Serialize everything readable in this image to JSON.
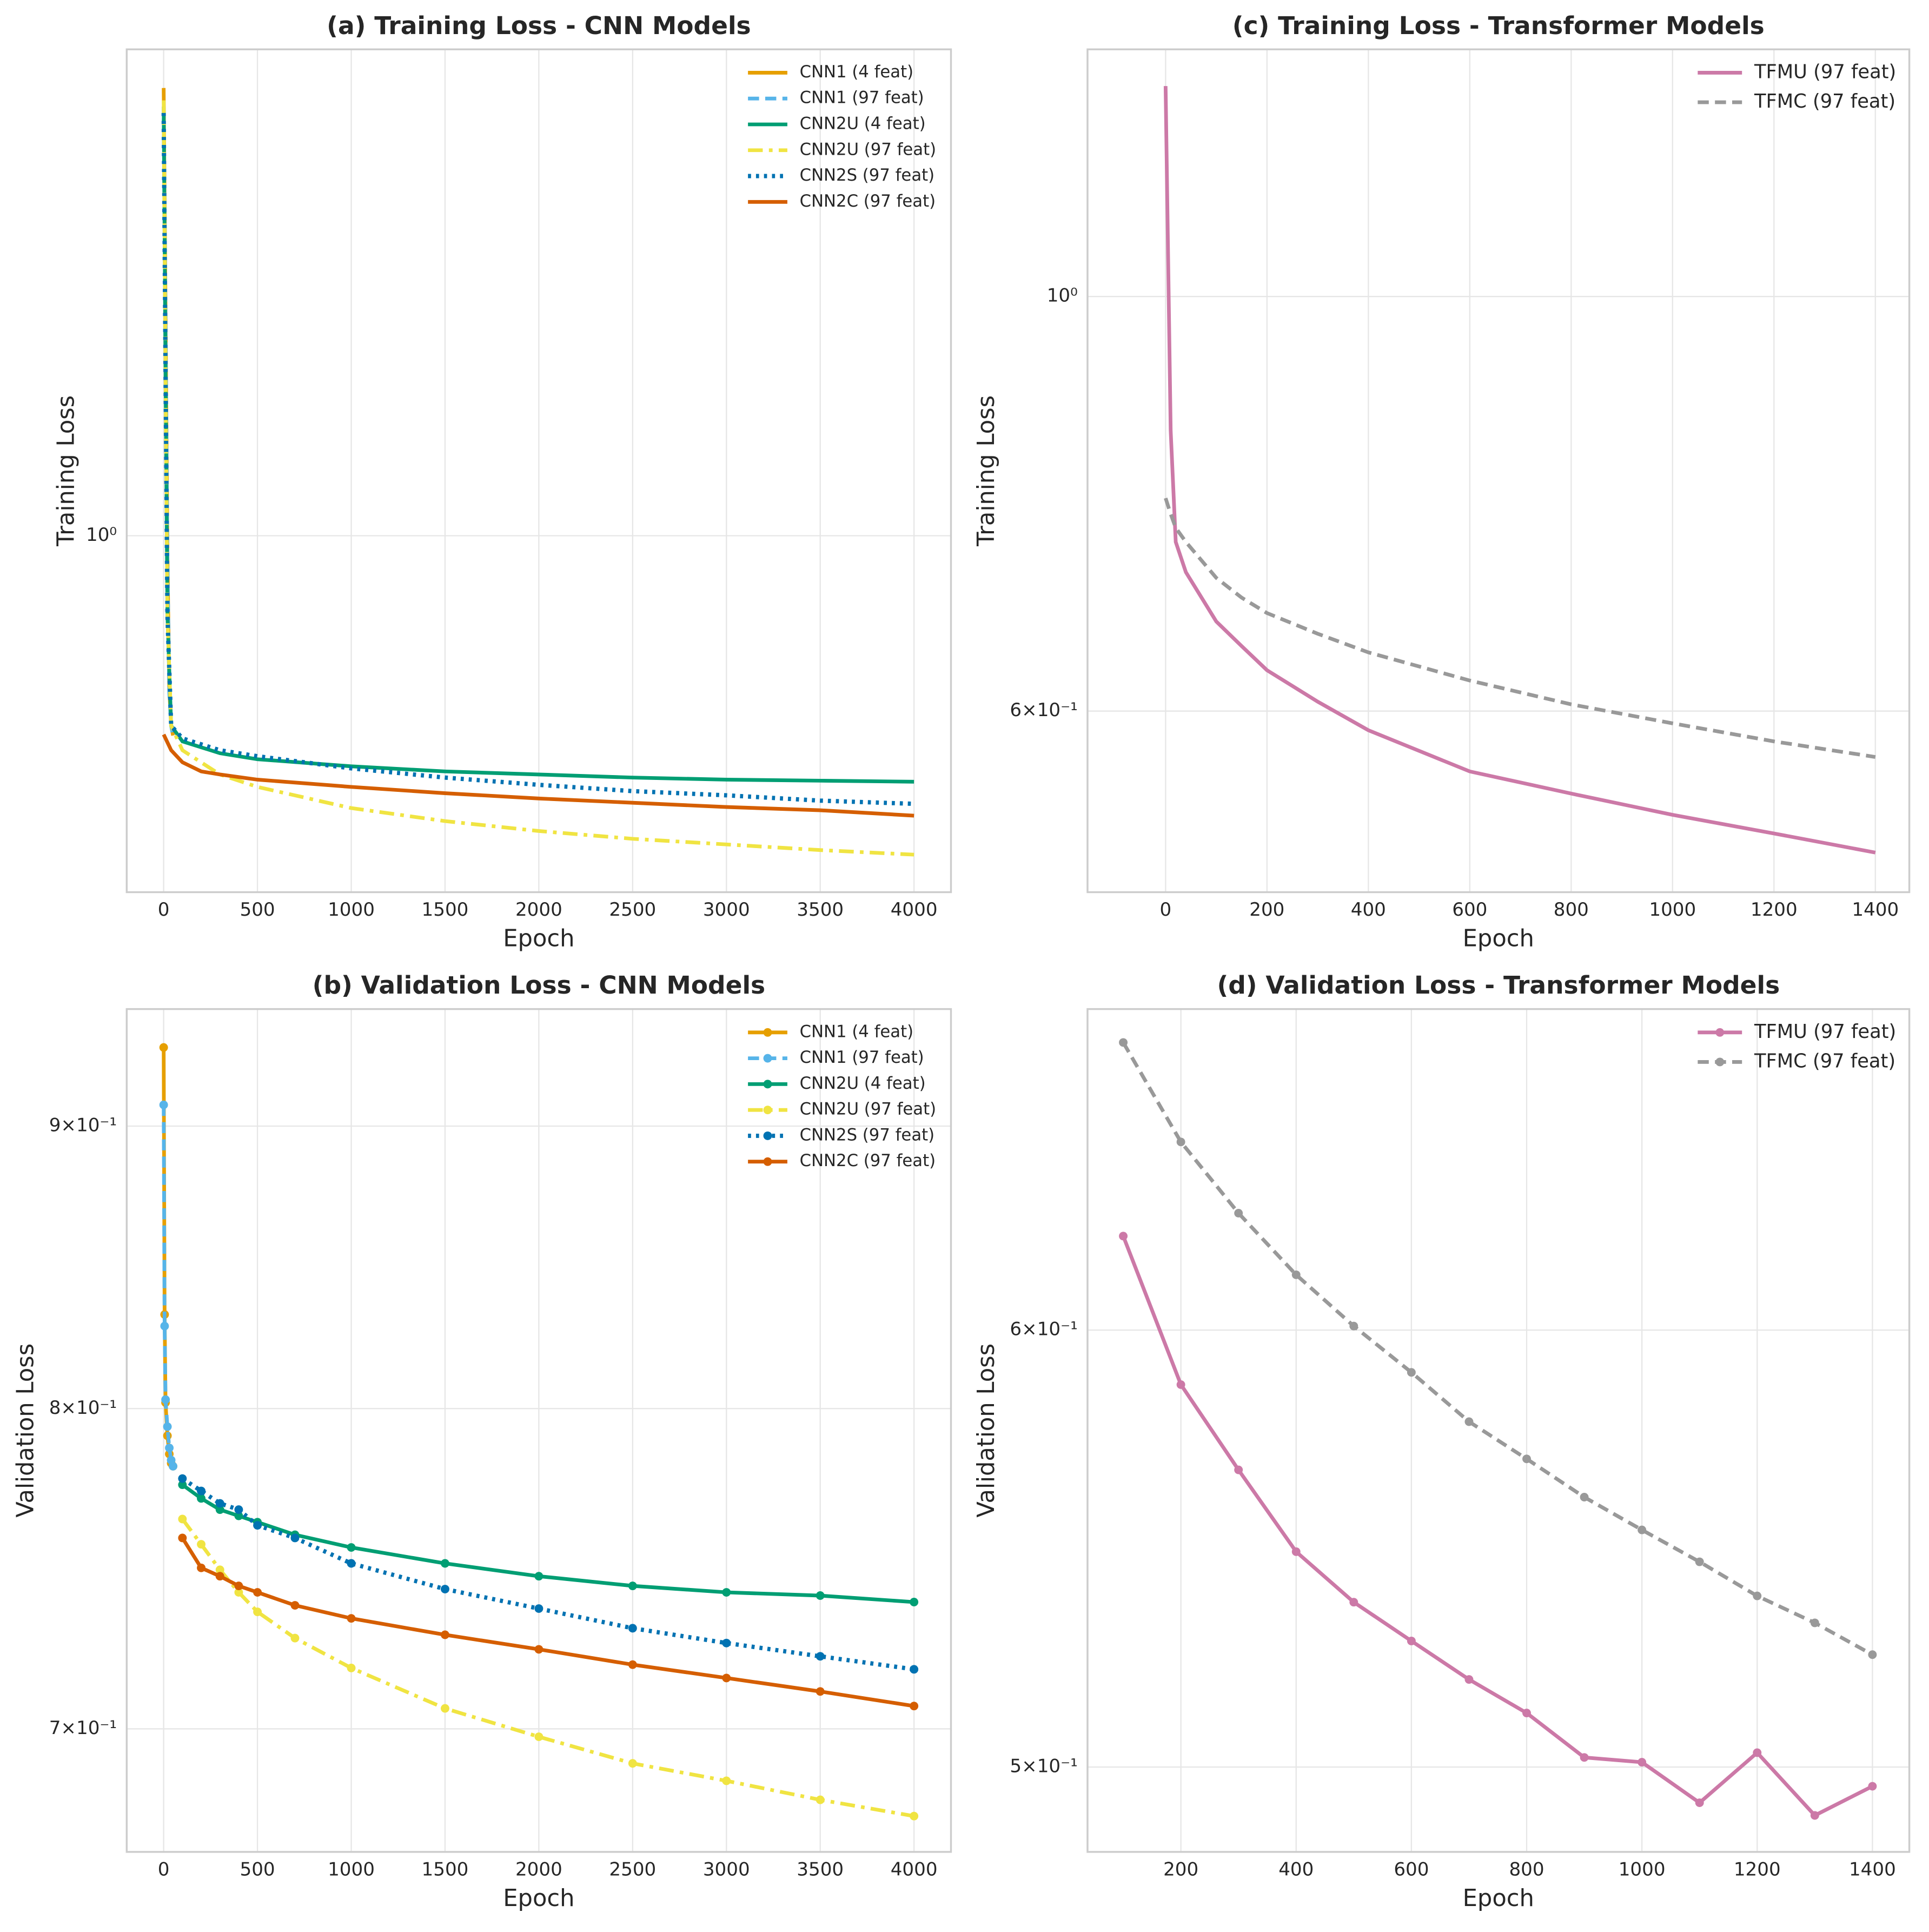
{
  "chart_data": [
    {
      "type": "line",
      "title": "(a) Training Loss - CNN Models",
      "xlabel": "Epoch",
      "ylabel": "Training Loss",
      "log_y": true,
      "grid": true,
      "legend": "upper right",
      "markers": false,
      "xlim": [
        -197,
        4197
      ],
      "xticks": [
        0,
        500,
        1000,
        1500,
        2000,
        2500,
        3000,
        3500,
        4000
      ],
      "ylim": [
        0.62,
        1.92
      ],
      "yticks": [
        {
          "value": 1,
          "label": "10⁰"
        }
      ],
      "series": [
        {
          "name": "CNN1 (4 feat)",
          "color": "#E69F00",
          "linestyle": "solid",
          "x": [
            0,
            10,
            20,
            30,
            40,
            50
          ],
          "values": [
            1.823,
            1.356,
            0.976,
            0.814,
            0.775,
            0.765
          ]
        },
        {
          "name": "CNN1 (97 feat)",
          "color": "#56B4E9",
          "linestyle": "dashed",
          "x": [
            0,
            10,
            20,
            30,
            40,
            50
          ],
          "values": [
            1.75,
            1.33,
            0.97,
            0.81,
            0.775,
            0.765
          ]
        },
        {
          "name": "CNN2U (4 feat)",
          "color": "#009E73",
          "linestyle": "solid",
          "x": [
            0,
            10,
            20,
            40,
            100,
            300,
            500,
            1000,
            1500,
            2000,
            2500,
            3000,
            3500,
            4000
          ],
          "values": [
            1.778,
            1.249,
            0.899,
            0.775,
            0.759,
            0.747,
            0.741,
            0.734,
            0.729,
            0.726,
            0.723,
            0.721,
            0.72,
            0.719
          ]
        },
        {
          "name": "CNN2U (97 feat)",
          "color": "#F0E442",
          "linestyle": "dashdot",
          "x": [
            0,
            10,
            20,
            40,
            100,
            300,
            500,
            1000,
            1500,
            2000,
            2500,
            3000,
            3500,
            4000
          ],
          "values": [
            1.793,
            1.249,
            0.899,
            0.775,
            0.75,
            0.726,
            0.714,
            0.694,
            0.682,
            0.673,
            0.666,
            0.661,
            0.656,
            0.652
          ]
        },
        {
          "name": "CNN2S (97 feat)",
          "color": "#0072B2",
          "linestyle": "dotted",
          "x": [
            0,
            10,
            20,
            40,
            100,
            300,
            500,
            1000,
            1500,
            2000,
            2500,
            3000,
            3500,
            4000
          ],
          "values": [
            1.763,
            1.249,
            0.899,
            0.775,
            0.762,
            0.75,
            0.744,
            0.732,
            0.723,
            0.716,
            0.71,
            0.706,
            0.701,
            0.698
          ]
        },
        {
          "name": "CNN2C (97 feat)",
          "color": "#D55E00",
          "linestyle": "solid",
          "x": [
            0,
            40,
            100,
            200,
            300,
            500,
            1000,
            1500,
            2000,
            2500,
            3000,
            3500,
            4000
          ],
          "values": [
            0.766,
            0.75,
            0.738,
            0.729,
            0.726,
            0.721,
            0.714,
            0.708,
            0.703,
            0.699,
            0.695,
            0.692,
            0.687
          ]
        }
      ]
    },
    {
      "type": "line",
      "title": "(c) Training Loss - Transformer Models",
      "xlabel": "Epoch",
      "ylabel": "Training Loss",
      "log_y": true,
      "grid": true,
      "legend": "upper right",
      "markers": false,
      "xlim": [
        -154,
        1467
      ],
      "xticks": [
        0,
        200,
        400,
        600,
        800,
        1000,
        1200,
        1400
      ],
      "ylim": [
        0.48,
        1.356
      ],
      "yticks": [
        {
          "value": 0.6,
          "label": "6×10⁻¹"
        },
        {
          "value": 1,
          "label": "10⁰"
        }
      ],
      "x": [
        0,
        10,
        20,
        40,
        100,
        150,
        200,
        300,
        400,
        600,
        800,
        1000,
        1200,
        1400
      ],
      "series": [
        {
          "name": "TFMU (97 feat)",
          "color": "#CC79A7",
          "linestyle": "solid",
          "values": [
            1.296,
            0.848,
            0.739,
            0.712,
            0.67,
            0.65,
            0.631,
            0.607,
            0.586,
            0.557,
            0.542,
            0.528,
            0.516,
            0.504
          ]
        },
        {
          "name": "TFMC (97 feat)",
          "color": "#999999",
          "linestyle": "dashed",
          "values": [
            0.78,
            0.765,
            0.752,
            0.739,
            0.707,
            0.69,
            0.677,
            0.66,
            0.645,
            0.623,
            0.605,
            0.591,
            0.578,
            0.567
          ]
        }
      ]
    },
    {
      "type": "line",
      "title": "(b) Validation Loss - CNN Models",
      "xlabel": "Epoch",
      "ylabel": "Validation Loss",
      "log_y": true,
      "grid": true,
      "legend": "upper right",
      "markers": true,
      "xlim": [
        -197,
        4197
      ],
      "xticks": [
        0,
        500,
        1000,
        1500,
        2000,
        2500,
        3000,
        3500,
        4000
      ],
      "ylim": [
        0.665,
        0.945
      ],
      "yticks": [
        {
          "value": 0.7,
          "label": "7×10⁻¹"
        },
        {
          "value": 0.8,
          "label": "8×10⁻¹"
        },
        {
          "value": 0.9,
          "label": "9×10⁻¹"
        }
      ],
      "series": [
        {
          "name": "CNN1 (4 feat)",
          "color": "#E69F00",
          "linestyle": "solid",
          "x": [
            0,
            5,
            10,
            20,
            30,
            40,
            50
          ],
          "values": [
            0.93,
            0.832,
            0.802,
            0.791,
            0.785,
            0.782,
            0.781
          ]
        },
        {
          "name": "CNN1 (97 feat)",
          "color": "#56B4E9",
          "linestyle": "dashed",
          "x": [
            0,
            5,
            10,
            20,
            30,
            40,
            50
          ],
          "values": [
            0.908,
            0.828,
            0.803,
            0.794,
            0.787,
            0.783,
            0.781
          ]
        },
        {
          "name": "CNN2U (4 feat)",
          "color": "#009E73",
          "linestyle": "solid",
          "x": [
            100,
            200,
            300,
            400,
            500,
            700,
            1000,
            1500,
            2000,
            2500,
            3000,
            3500,
            4000
          ],
          "values": [
            0.775,
            0.7706,
            0.767,
            0.765,
            0.763,
            0.759,
            0.755,
            0.75,
            0.746,
            0.743,
            0.741,
            0.74,
            0.738
          ]
        },
        {
          "name": "CNN2U (97 feat)",
          "color": "#F0E442",
          "linestyle": "dashdot",
          "x": [
            100,
            200,
            300,
            400,
            500,
            700,
            1000,
            1500,
            2000,
            2500,
            3000,
            3500,
            4000
          ],
          "values": [
            0.764,
            0.756,
            0.748,
            0.741,
            0.735,
            0.727,
            0.718,
            0.706,
            0.6977,
            0.69,
            0.685,
            0.6796,
            0.675
          ]
        },
        {
          "name": "CNN2S (97 feat)",
          "color": "#0072B2",
          "linestyle": "dotted",
          "x": [
            100,
            200,
            300,
            400,
            500,
            700,
            1000,
            1500,
            2000,
            2500,
            3000,
            3500,
            4000
          ],
          "values": [
            0.777,
            0.773,
            0.769,
            0.767,
            0.762,
            0.758,
            0.75,
            0.742,
            0.736,
            0.73,
            0.7255,
            0.7215,
            0.7176
          ]
        },
        {
          "name": "CNN2C (97 feat)",
          "color": "#D55E00",
          "linestyle": "solid",
          "x": [
            100,
            200,
            300,
            400,
            500,
            700,
            1000,
            1500,
            2000,
            2500,
            3000,
            3500,
            4000
          ],
          "values": [
            0.758,
            0.7486,
            0.746,
            0.743,
            0.741,
            0.737,
            0.733,
            0.728,
            0.7236,
            0.719,
            0.715,
            0.711,
            0.7067
          ]
        }
      ]
    },
    {
      "type": "line",
      "title": "(d) Validation Loss - Transformer Models",
      "xlabel": "Epoch",
      "ylabel": "Validation Loss",
      "log_y": true,
      "grid": true,
      "legend": "upper right",
      "markers": true,
      "xlim": [
        38,
        1464
      ],
      "xticks": [
        200,
        400,
        600,
        800,
        1000,
        1200,
        1400
      ],
      "ylim": [
        0.4826,
        0.686
      ],
      "yticks": [
        {
          "value": 0.5,
          "label": "5×10⁻¹"
        },
        {
          "value": 0.6,
          "label": "6×10⁻¹"
        }
      ],
      "x": [
        100,
        200,
        300,
        400,
        500,
        600,
        700,
        800,
        900,
        1000,
        1100,
        1200,
        1300,
        1400
      ],
      "series": [
        {
          "name": "TFMU (97 feat)",
          "color": "#CC79A7",
          "linestyle": "solid",
          "values": [
            0.624,
            0.5865,
            0.566,
            0.547,
            0.5356,
            0.527,
            0.5186,
            0.5114,
            0.502,
            0.501,
            0.4926,
            0.503,
            0.49,
            0.496
          ]
        },
        {
          "name": "TFMC (97 feat)",
          "color": "#999999",
          "linestyle": "dashed",
          "values": [
            0.6765,
            0.649,
            0.63,
            0.614,
            0.601,
            0.5895,
            0.5775,
            0.5686,
            0.5596,
            0.552,
            0.5447,
            0.537,
            0.531,
            0.524
          ]
        }
      ]
    }
  ]
}
